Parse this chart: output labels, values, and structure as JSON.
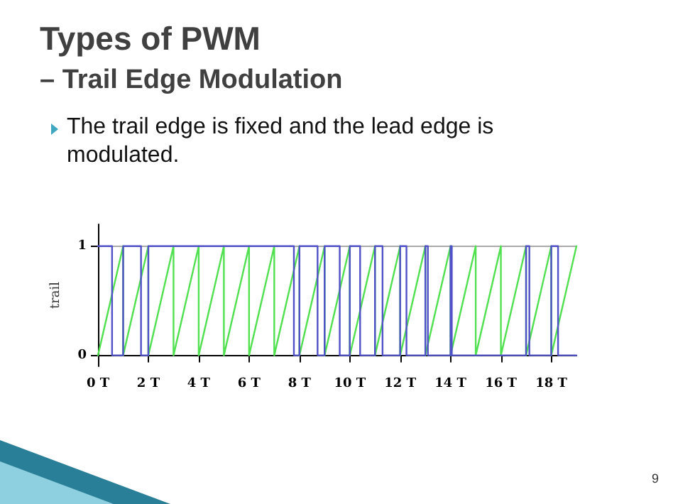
{
  "chart_data": {
    "type": "line",
    "title": "Types of PWM",
    "subtitle": "– Trail Edge Modulation",
    "annotations": [
      "The trail edge is fixed and the lead edge is modulated.",
      "9"
    ],
    "ylabel": "trail",
    "xlim": [
      0,
      19
    ],
    "ylim": [
      -0.1,
      1.2
    ],
    "xticks": [
      {
        "value": 0,
        "label": "0 T"
      },
      {
        "value": 2,
        "label": "2 T"
      },
      {
        "value": 4,
        "label": "4 T"
      },
      {
        "value": 6,
        "label": "6 T"
      },
      {
        "value": 8,
        "label": "8 T"
      },
      {
        "value": 10,
        "label": "10 T"
      },
      {
        "value": 12,
        "label": "12 T"
      },
      {
        "value": 14,
        "label": "14 T"
      },
      {
        "value": 16,
        "label": "16 T"
      },
      {
        "value": 18,
        "label": "18 T"
      }
    ],
    "yticks": [
      0,
      1
    ],
    "grid": "y",
    "marker": "none",
    "line_style": "solid",
    "series": [
      {
        "color": "#50e050",
        "x": [
          0,
          1,
          1,
          2,
          2,
          3,
          3,
          4,
          4,
          5,
          5,
          6,
          6,
          7,
          7,
          8,
          8,
          9,
          9,
          10,
          10,
          11,
          11,
          12,
          12,
          13,
          13,
          14,
          14,
          15,
          15,
          16,
          16,
          17,
          17,
          18,
          18,
          19
        ],
        "values": [
          0,
          1,
          0,
          1,
          0,
          1,
          0,
          1,
          0,
          1,
          0,
          1,
          0,
          1,
          0,
          1,
          0,
          1,
          0,
          1,
          0,
          1,
          0,
          1,
          0,
          1,
          0,
          1,
          0,
          1,
          0,
          1,
          0,
          1,
          0,
          1,
          0,
          1
        ]
      },
      {
        "type": "step",
        "color": "#5050c8",
        "x": [
          0,
          0.56,
          1,
          1.71,
          2,
          7.78,
          8,
          8.72,
          9,
          9.6,
          10,
          10.41,
          11,
          11.3,
          12,
          12.25,
          13,
          13.1,
          14,
          14.05,
          17,
          17.13,
          18,
          18.27,
          19
        ],
        "values": [
          1,
          0,
          1,
          0,
          1,
          0,
          1,
          0,
          1,
          0,
          1,
          0,
          1,
          0,
          1,
          0,
          1,
          0,
          1,
          0,
          1,
          0,
          1,
          0,
          0
        ]
      }
    ]
  }
}
